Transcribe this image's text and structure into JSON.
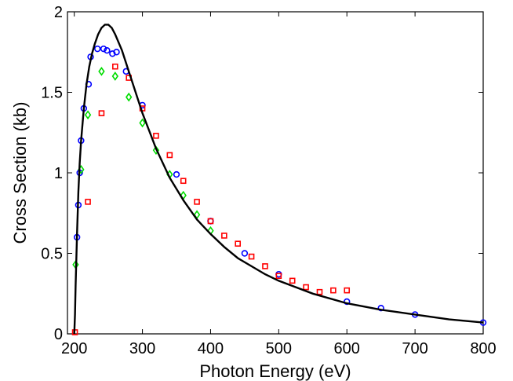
{
  "chart_data": {
    "type": "scatter",
    "title": "",
    "xlabel": "Photon Energy (eV)",
    "ylabel": "Cross Section (kb)",
    "xlim": [
      190,
      800
    ],
    "ylim": [
      0,
      2
    ],
    "xticks": [
      200,
      300,
      400,
      500,
      600,
      700,
      800
    ],
    "yticks": [
      0,
      0.5,
      1,
      1.5,
      2
    ],
    "xtick_labels": [
      "200",
      "300",
      "400",
      "500",
      "600",
      "700",
      "800"
    ],
    "ytick_labels": [
      "0",
      "0.5",
      "1",
      "1.5",
      "2"
    ],
    "grid": false,
    "legend": "none",
    "series": [
      {
        "marker": "circle",
        "color": "#0000ff",
        "x": [
          204,
          206,
          208,
          210,
          214,
          221,
          224,
          234,
          243,
          248,
          256,
          262,
          276,
          300,
          350,
          400,
          450,
          500,
          600,
          650,
          700,
          800
        ],
        "y": [
          0.6,
          0.8,
          1.0,
          1.2,
          1.4,
          1.55,
          1.72,
          1.77,
          1.77,
          1.76,
          1.74,
          1.75,
          1.63,
          1.42,
          0.99,
          0.7,
          0.5,
          0.37,
          0.2,
          0.16,
          0.12,
          0.07
        ]
      },
      {
        "marker": "square",
        "color": "#ff0000",
        "x": [
          201,
          220,
          240,
          260,
          280,
          300,
          320,
          340,
          360,
          380,
          400,
          420,
          440,
          460,
          480,
          500,
          520,
          540,
          560,
          580,
          600
        ],
        "y": [
          0.01,
          0.82,
          1.37,
          1.66,
          1.59,
          1.4,
          1.23,
          1.11,
          0.95,
          0.82,
          0.7,
          0.61,
          0.56,
          0.48,
          0.42,
          0.36,
          0.33,
          0.29,
          0.26,
          0.27,
          0.27
        ]
      },
      {
        "marker": "diamond",
        "color": "#00dd00",
        "x": [
          202,
          210,
          220,
          240,
          260,
          280,
          300,
          320,
          340,
          360,
          380,
          400
        ],
        "y": [
          0.43,
          1.02,
          1.36,
          1.63,
          1.6,
          1.47,
          1.31,
          1.14,
          0.99,
          0.86,
          0.74,
          0.64
        ]
      },
      {
        "marker": "line",
        "color": "#000000",
        "x": [
          200,
          201,
          202,
          204,
          206,
          208,
          210,
          214,
          218,
          222,
          226,
          230,
          235,
          240,
          245,
          250,
          255,
          260,
          270,
          280,
          290,
          300,
          320,
          340,
          360,
          380,
          400,
          420,
          440,
          460,
          480,
          500,
          550,
          600,
          650,
          700,
          750,
          800
        ],
        "y": [
          0.0,
          0.12,
          0.3,
          0.62,
          0.88,
          1.06,
          1.2,
          1.4,
          1.55,
          1.66,
          1.74,
          1.8,
          1.86,
          1.9,
          1.92,
          1.92,
          1.9,
          1.86,
          1.76,
          1.63,
          1.5,
          1.37,
          1.15,
          0.97,
          0.83,
          0.71,
          0.62,
          0.54,
          0.47,
          0.42,
          0.37,
          0.33,
          0.25,
          0.19,
          0.15,
          0.12,
          0.09,
          0.07
        ]
      }
    ]
  }
}
